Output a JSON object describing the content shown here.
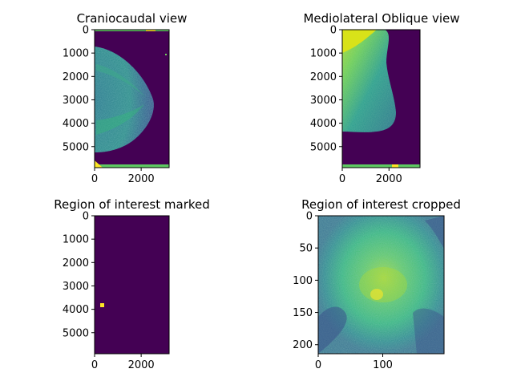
{
  "colormap": "viridis",
  "colors": {
    "background_purple": "#440154",
    "bright_yellow": "#fde725",
    "tissue_teal": "#3b8f8c",
    "tissue_light": "#57c26e"
  },
  "panels": [
    {
      "title": "Craniocaudal view",
      "image": "craniocaudal-mammogram",
      "x_ticks": [
        {
          "value": 0,
          "label": "0"
        },
        {
          "value": 2000,
          "label": "2000"
        }
      ],
      "y_ticks": [
        {
          "value": 0,
          "label": "0"
        },
        {
          "value": 1000,
          "label": "1000"
        },
        {
          "value": 2000,
          "label": "2000"
        },
        {
          "value": 3000,
          "label": "3000"
        },
        {
          "value": 4000,
          "label": "4000"
        },
        {
          "value": 5000,
          "label": "5000"
        }
      ]
    },
    {
      "title": "Mediolateral Oblique view",
      "image": "mlo-mammogram",
      "x_ticks": [
        {
          "value": 0,
          "label": "0"
        },
        {
          "value": 2000,
          "label": "2000"
        }
      ],
      "y_ticks": [
        {
          "value": 0,
          "label": "0"
        },
        {
          "value": 1000,
          "label": "1000"
        },
        {
          "value": 2000,
          "label": "2000"
        },
        {
          "value": 3000,
          "label": "3000"
        },
        {
          "value": 4000,
          "label": "4000"
        },
        {
          "value": 5000,
          "label": "5000"
        }
      ]
    },
    {
      "title": "Region of interest marked",
      "image": "roi-mask",
      "x_ticks": [
        {
          "value": 0,
          "label": "0"
        },
        {
          "value": 2000,
          "label": "2000"
        }
      ],
      "y_ticks": [
        {
          "value": 0,
          "label": "0"
        },
        {
          "value": 1000,
          "label": "1000"
        },
        {
          "value": 2000,
          "label": "2000"
        },
        {
          "value": 3000,
          "label": "3000"
        },
        {
          "value": 4000,
          "label": "4000"
        },
        {
          "value": 5000,
          "label": "5000"
        }
      ]
    },
    {
      "title": "Region of interest cropped",
      "image": "roi-crop",
      "x_ticks": [
        {
          "value": 0,
          "label": "0"
        },
        {
          "value": 100,
          "label": "100"
        }
      ],
      "y_ticks": [
        {
          "value": 0,
          "label": "0"
        },
        {
          "value": 50,
          "label": "50"
        },
        {
          "value": 100,
          "label": "100"
        },
        {
          "value": 150,
          "label": "150"
        },
        {
          "value": 200,
          "label": "200"
        }
      ]
    }
  ]
}
